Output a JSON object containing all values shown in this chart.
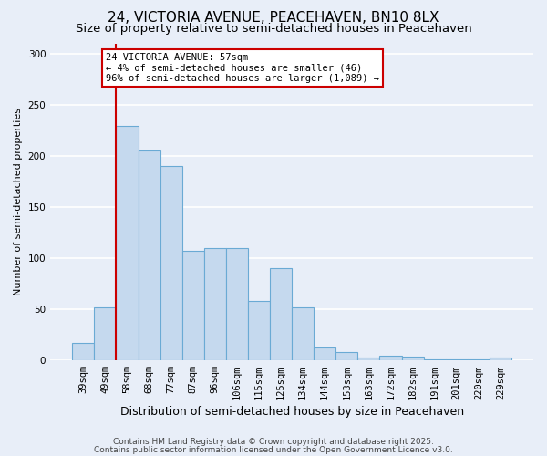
{
  "title": "24, VICTORIA AVENUE, PEACEHAVEN, BN10 8LX",
  "subtitle": "Size of property relative to semi-detached houses in Peacehaven",
  "xlabel": "Distribution of semi-detached houses by size in Peacehaven",
  "ylabel": "Number of semi-detached properties",
  "categories": [
    "39sqm",
    "49sqm",
    "58sqm",
    "68sqm",
    "77sqm",
    "87sqm",
    "96sqm",
    "106sqm",
    "115sqm",
    "125sqm",
    "134sqm",
    "144sqm",
    "153sqm",
    "163sqm",
    "172sqm",
    "182sqm",
    "191sqm",
    "201sqm",
    "220sqm",
    "229sqm"
  ],
  "values": [
    17,
    52,
    229,
    205,
    190,
    107,
    110,
    110,
    58,
    90,
    52,
    13,
    8,
    3,
    5,
    4,
    1,
    1,
    1,
    3
  ],
  "bar_color": "#c5d9ee",
  "bar_edge_color": "#6aaad4",
  "vline_x_index": 2,
  "vline_color": "#cc0000",
  "annotation_title": "24 VICTORIA AVENUE: 57sqm",
  "annotation_line1": "← 4% of semi-detached houses are smaller (46)",
  "annotation_line2": "96% of semi-detached houses are larger (1,089) →",
  "annotation_box_color": "#ffffff",
  "annotation_box_edge": "#cc0000",
  "ylim": [
    0,
    310
  ],
  "yticks": [
    0,
    50,
    100,
    150,
    200,
    250,
    300
  ],
  "footer1": "Contains HM Land Registry data © Crown copyright and database right 2025.",
  "footer2": "Contains public sector information licensed under the Open Government Licence v3.0.",
  "bg_color": "#e8eef8",
  "plot_bg_color": "#e8eef8",
  "grid_color": "#ffffff",
  "title_fontsize": 11,
  "subtitle_fontsize": 9.5,
  "xlabel_fontsize": 9,
  "ylabel_fontsize": 8,
  "tick_fontsize": 7.5,
  "footer_fontsize": 6.5
}
